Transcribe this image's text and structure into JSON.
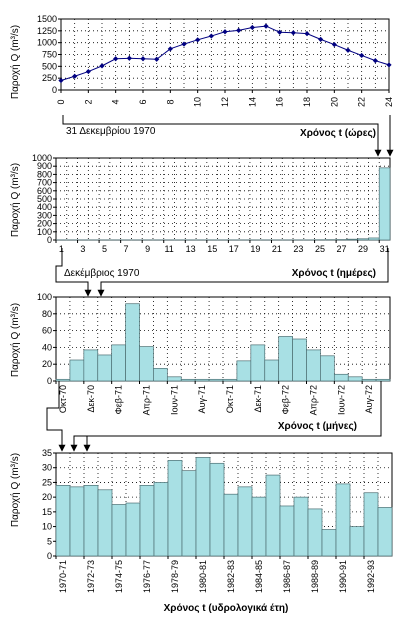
{
  "chart_data": [
    {
      "type": "line",
      "ylabel": "Παροχή Q (m³/s)",
      "xlabel": "Χρόνος t (ώρες)",
      "annotation": "31 Δεκεμβρίου 1970",
      "ylim": [
        0,
        1500
      ],
      "yticks": [
        "0",
        "250",
        "500",
        "750",
        "1000",
        "1250",
        "1500"
      ],
      "xticks": [
        "0",
        "2",
        "4",
        "6",
        "8",
        "10",
        "12",
        "14",
        "16",
        "18",
        "20",
        "22",
        "24"
      ],
      "x": [
        0,
        1,
        2,
        3,
        4,
        5,
        6,
        7,
        8,
        9,
        10,
        11,
        12,
        13,
        14,
        15,
        16,
        17,
        18,
        19,
        20,
        21,
        22,
        23,
        24
      ],
      "values": [
        200,
        290,
        390,
        510,
        660,
        670,
        660,
        650,
        870,
        970,
        1060,
        1140,
        1230,
        1260,
        1320,
        1350,
        1220,
        1210,
        1190,
        1070,
        960,
        840,
        730,
        620,
        530
      ],
      "grid": true,
      "series_color": "#000080"
    },
    {
      "type": "bar",
      "ylabel": "Παροχή Q (m³/s)",
      "xlabel": "Χρόνος t (ημέρες)",
      "annotation": "Δεκέμβριος 1970",
      "ylim": [
        0,
        1000
      ],
      "yticks": [
        "0",
        "100",
        "200",
        "300",
        "400",
        "500",
        "600",
        "700",
        "800",
        "900",
        "1000"
      ],
      "xticks": [
        "1",
        "3",
        "5",
        "7",
        "9",
        "11",
        "13",
        "15",
        "17",
        "19",
        "21",
        "23",
        "25",
        "27",
        "29",
        "31"
      ],
      "categories": [
        "1",
        "2",
        "3",
        "4",
        "5",
        "6",
        "7",
        "8",
        "9",
        "10",
        "11",
        "12",
        "13",
        "14",
        "15",
        "16",
        "17",
        "18",
        "19",
        "20",
        "21",
        "22",
        "23",
        "24",
        "25",
        "26",
        "27",
        "28",
        "29",
        "30",
        "31"
      ],
      "values": [
        2,
        2,
        2,
        2,
        2,
        2,
        2,
        2,
        2,
        2,
        2,
        2,
        2,
        2,
        2,
        2,
        2,
        2,
        2,
        2,
        2,
        2,
        2,
        2,
        3,
        4,
        5,
        10,
        15,
        25,
        880
      ],
      "grid": true,
      "bar_color": "#a8e0e4"
    },
    {
      "type": "bar",
      "ylabel": "Παροχή Q (m³/s)",
      "xlabel": "Χρόνος t (μήνες)",
      "ylim": [
        0,
        100
      ],
      "yticks": [
        "0",
        "20",
        "40",
        "60",
        "80",
        "100"
      ],
      "xticks": [
        "Οκτ-70",
        "Δεκ-70",
        "Φεβ-71",
        "Απρ-71",
        "Ιουν-71",
        "Αυγ-71",
        "Οκτ-71",
        "Δεκ-71",
        "Φεβ-72",
        "Απρ-72",
        "Ιουν-72",
        "Αυγ-72"
      ],
      "categories": [
        "Οκτ-70",
        "Νοε-70",
        "Δεκ-70",
        "Ιαν-71",
        "Φεβ-71",
        "Μαρ-71",
        "Απρ-71",
        "Μαϊ-71",
        "Ιουν-71",
        "Ιουλ-71",
        "Αυγ-71",
        "Σεπ-71",
        "Οκτ-71",
        "Νοε-71",
        "Δεκ-71",
        "Ιαν-72",
        "Φεβ-72",
        "Μαρ-72",
        "Απρ-72",
        "Μαϊ-72",
        "Ιουν-72",
        "Ιουλ-72",
        "Αυγ-72",
        "Σεπ-72"
      ],
      "values": [
        2,
        25,
        37,
        31,
        43,
        92,
        41,
        15,
        5,
        2,
        2,
        2,
        2,
        24,
        43,
        25,
        53,
        50,
        37,
        30,
        8,
        5,
        2,
        2
      ],
      "grid": true,
      "bar_color": "#a8e0e4"
    },
    {
      "type": "bar",
      "ylabel": "Παροχή Q (m³/s)",
      "xlabel": "Χρόνος t (υδρολογικά έτη)",
      "ylim": [
        0,
        35
      ],
      "yticks": [
        "0",
        "5",
        "10",
        "15",
        "20",
        "25",
        "30",
        "35"
      ],
      "xticks": [
        "1970-71",
        "1972-73",
        "1974-75",
        "1976-77",
        "1978-79",
        "1980-81",
        "1982-83",
        "1984-85",
        "1986-87",
        "1988-89",
        "1990-91",
        "1992-93"
      ],
      "categories": [
        "1970-71",
        "1971-72",
        "1972-73",
        "1973-74",
        "1974-75",
        "1975-76",
        "1976-77",
        "1977-78",
        "1978-79",
        "1979-80",
        "1980-81",
        "1981-82",
        "1982-83",
        "1983-84",
        "1984-85",
        "1985-86",
        "1986-87",
        "1987-88",
        "1988-89",
        "1989-90",
        "1990-91",
        "1991-92",
        "1992-93",
        "1993-94"
      ],
      "values": [
        24,
        23.5,
        24,
        22.5,
        17.5,
        18,
        24,
        25,
        32.5,
        29,
        33.5,
        31.5,
        21,
        23.5,
        20,
        27.5,
        17,
        20,
        16,
        9,
        24.5,
        10,
        21.5,
        16.5
      ],
      "grid": true,
      "bar_color": "#a8e0e4"
    }
  ]
}
